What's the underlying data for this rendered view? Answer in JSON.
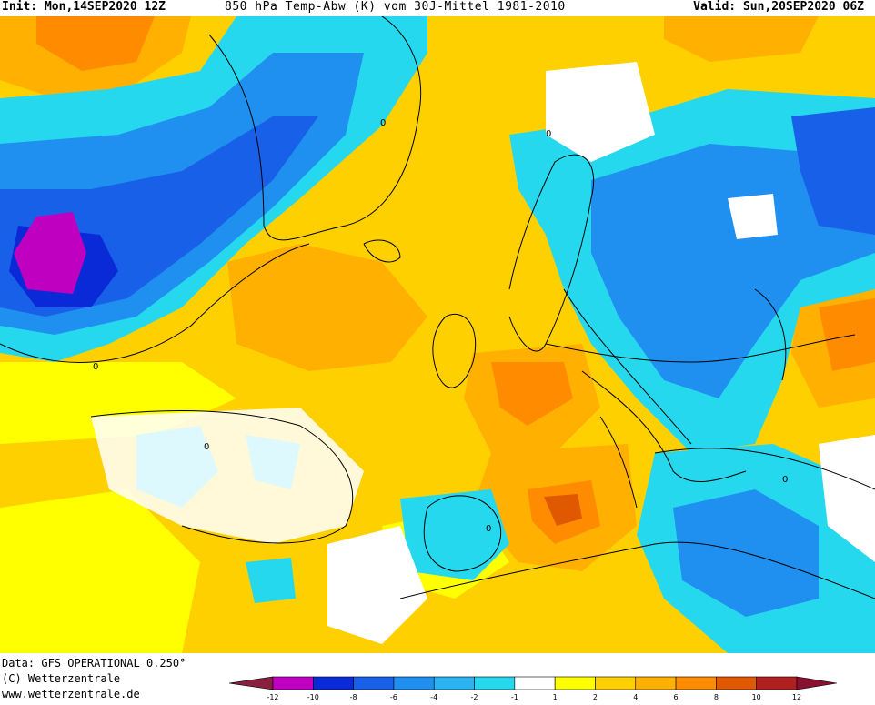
{
  "header": {
    "init": "Init: Mon,14SEP2020 12Z",
    "title": "850 hPa Temp-Abw (K) vom 30J-Mittel 1981-2010",
    "valid": "Valid: Sun,20SEP2020 06Z"
  },
  "footer": {
    "data_line": "Data: GFS OPERATIONAL 0.250°",
    "copyright": "(C) Wetterzentrale",
    "website": "www.wetterzentrale.de"
  },
  "colorbar": {
    "ticks": [
      "-12",
      "-10",
      "-8",
      "-6",
      "-4",
      "-2",
      "-1",
      "1",
      "2",
      "4",
      "6",
      "8",
      "10",
      "12"
    ],
    "colors": [
      "#8a2040",
      "#c000c0",
      "#0a2ad8",
      "#1860e8",
      "#1f8ff0",
      "#2cb4f2",
      "#25d8ee",
      "#ffffff",
      "#ffff00",
      "#ffd000",
      "#ffb000",
      "#ff8c00",
      "#e05800",
      "#b02020",
      "#8a1030"
    ]
  },
  "contour_labels": [
    "0",
    "0",
    "0",
    "0",
    "0",
    "0"
  ]
}
